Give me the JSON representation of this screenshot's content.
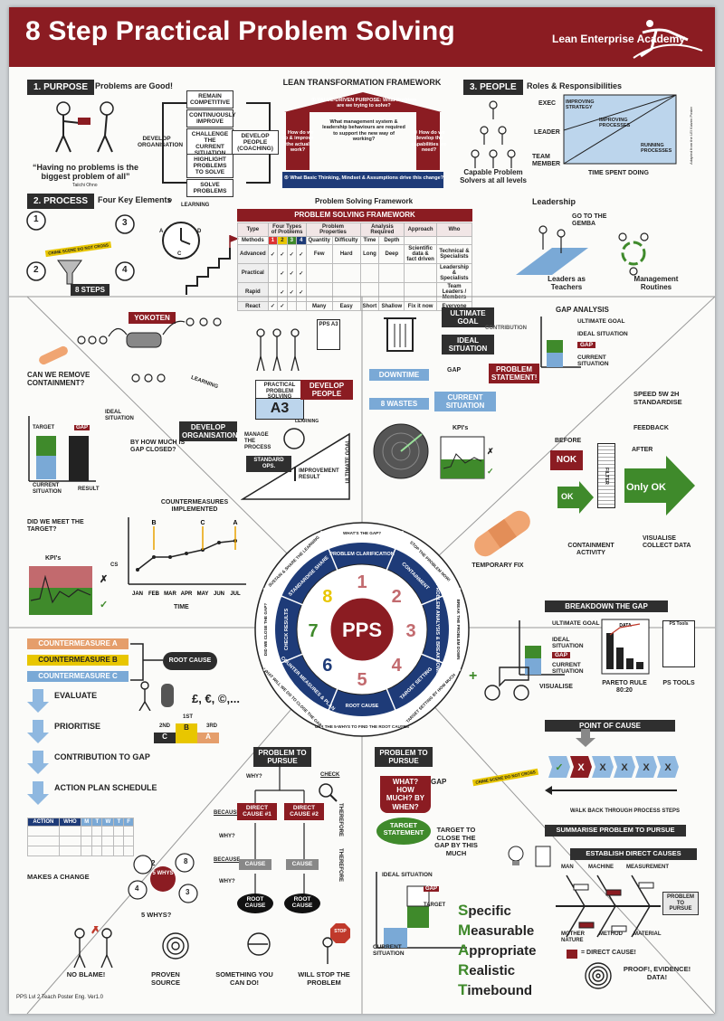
{
  "header": {
    "title": "8 Step Practical Problem Solving",
    "brand": "Lean Enterprise Academy"
  },
  "purpose": {
    "label": "1. PURPOSE",
    "subtitle": "Problems are Good!",
    "quote": "“Having no problems is the biggest problem of all”",
    "quote_author": "Taiichi Ohno",
    "cycle": {
      "remain": "REMAIN COMPETITIVE",
      "improve": "CONTINUOUSLY IMPROVE",
      "challenge": "CHALLENGE THE CURRENT SITUATION",
      "highlight": "HIGHLIGHT PROBLEMS TO SOLVE",
      "solve": "SOLVE PROBLEMS",
      "develop_org": "DEVELOP ORGANISATION",
      "develop_people": "DEVELOP PEOPLE (COACHING)"
    }
  },
  "ltf": {
    "title": "LEAN TRANSFORMATION FRAMEWORK",
    "q1": "① VALUE-DRIVEN PURPOSE: What Problem are we trying to solve?",
    "q2": "② How do we do & improve the actual work?",
    "q_mid": "What management system & leadership behaviours are required to support the new way of working?",
    "q3": "③ How do we develop the capabilities we need?",
    "q5": "⑤ What Basic Thinking, Mindset & Assumptions drive this change?"
  },
  "people": {
    "label": "3. PEOPLE",
    "subtitle": "Roles & Responsibilities",
    "caption": "Capable Problem Solvers at all levels",
    "rows": [
      "EXEC",
      "LEADER",
      "TEAM MEMBER"
    ],
    "bands": [
      "IMPROVING STRATEGY",
      "IMPROVING PROCESSES",
      "RUNNING PROCESSES"
    ],
    "xaxis": "TIME SPENT DOING"
  },
  "process": {
    "label": "2. PROCESS",
    "subtitle": "Four Key Elements",
    "steps_badge": "8 STEPS",
    "learning": "LEARNING",
    "tape": "CRIME SCENE DO NOT CROSS",
    "nums": [
      "1",
      "2",
      "3",
      "4"
    ],
    "cycle_letters": [
      "P",
      "D",
      "C",
      "A"
    ]
  },
  "psf": {
    "title": "Problem Solving Framework",
    "table_title": "PROBLEM SOLVING FRAMEWORK",
    "headers": [
      "Type",
      "Four Types of Problems",
      "Problem Properties",
      "Analysis Required",
      "Approach",
      "Who"
    ],
    "subheaders": [
      "Methods",
      "1",
      "2",
      "3",
      "4",
      "Quantity",
      "Difficulty",
      "Time",
      "Depth"
    ],
    "rows": [
      {
        "type": "Advanced",
        "cells": [
          "✓",
          "✓",
          "✓",
          "✓",
          "Few",
          "Hard",
          "Long",
          "Deep",
          "Scientific data & fact driven",
          "Technical & Specialists"
        ]
      },
      {
        "type": "Practical",
        "cells": [
          "",
          "✓",
          "✓",
          "✓",
          "",
          "",
          "",
          "",
          "",
          "Leadership & Specialists"
        ]
      },
      {
        "type": "Rapid",
        "cells": [
          "",
          "✓",
          "✓",
          "✓",
          "",
          "",
          "",
          "",
          "",
          "Team Leaders / Members"
        ]
      },
      {
        "type": "React",
        "cells": [
          "✓",
          "✓",
          "",
          "",
          "Many",
          "Easy",
          "Short",
          "Shallow",
          "Fix it now",
          "Everyone"
        ]
      }
    ]
  },
  "leadership": {
    "label": "Leadership",
    "gemba": "GO TO THE GEMBA",
    "teachers": "Leaders as Teachers",
    "routines": "Management Routines"
  },
  "q8": {
    "yokoten": "YOKOTEN",
    "pps_a3": "PPS A3",
    "containment_q": "CAN WE REMOVE CONTAINMENT?",
    "practical": "PRACTICAL PROBLEM SOLVING",
    "a3": "A3",
    "develop_people": "DEVELOP PEOPLE",
    "develop_org": "DEVELOP ORGANISATION",
    "learning": "LEARNING"
  },
  "q7": {
    "target": "TARGET",
    "gap": "GAP",
    "ideal": "IDEAL SITUATION",
    "current": "CURRENT SITUATION",
    "result": "RESULT",
    "closed_q": "BY HOW MUCH IS GAP CLOSED?",
    "manage": "MANAGE THE PROCESS",
    "std": "STANDARD OPS.",
    "improvement": "IMPROVEMENT RESULT",
    "ultimate": "ULTIMATE GOAL",
    "learning": "LEARNING"
  },
  "q6": {
    "countermeasures": "COUNTERMEASURES IMPLEMENTED",
    "target_q": "DID WE MEET THE TARGET?",
    "kpis": "KPI's",
    "time": "TIME",
    "cs": "CS",
    "months": [
      "JAN",
      "FEB",
      "MAR",
      "APR",
      "MAY",
      "JUN",
      "JUL"
    ],
    "markers": [
      "B",
      "C",
      "A"
    ]
  },
  "q1": {
    "ultimate": "ULTIMATE GOAL",
    "ideal": "IDEAL SITUATION",
    "contribution": "CONTRIBUTION",
    "gap": "GAP",
    "statement": "PROBLEM STATEMENT!",
    "current": "CURRENT SITUATION",
    "downtime": "DOWNTIME",
    "wastes": "8 WASTES",
    "kpis": "KPI's",
    "gap_analysis": "GAP ANALYSIS",
    "ga_items": [
      "ULTIMATE GOAL",
      "IDEAL SITUATION",
      "GAP",
      "CURRENT SITUATION"
    ]
  },
  "q2": {
    "speed": "SPEED 5W 2H STANDARDISE",
    "before": "BEFORE",
    "after": "AFTER",
    "feedback": "FEEDBACK",
    "nok": "NOK",
    "ok": "OK",
    "only_ok": "Only OK",
    "filter": "FILTER",
    "containment": "CONTAINMENT ACTIVITY",
    "visualise": "VISUALISE COLLECT DATA",
    "temp": "TEMPORARY FIX"
  },
  "wheel": {
    "center": "PPS",
    "nums": [
      "1",
      "2",
      "3",
      "4",
      "5",
      "6",
      "7",
      "8"
    ],
    "inner": [
      "PROBLEM CLARIFICATION",
      "CONTAINMENT",
      "PROBLEM ANALYSIS & BREAKDOWN",
      "TARGET SETTING",
      "ROOT CAUSE",
      "COUNTER MEASURES & PLAN",
      "CHECK RESULTS",
      "STANDARDISE SHARE"
    ],
    "outer": [
      "WHAT'S THE GAP?",
      "STOP THE PROBLEM NOW!",
      "BREAK THE PROBLEM DOWN",
      "TARGET SETTING BY HOW MUCH",
      "USE THE 5-WHYS TO FIND THE ROOT CAUSES",
      "WHAT WILL WE DO TO CLOSE THE GAP?",
      "DID WE CLOSE THE GAP?",
      "SUSTAIN & SHARE THE LEARNING"
    ]
  },
  "q3": {
    "breakdown": "BREAKDOWN THE GAP",
    "ultimate": "ULTIMATE GOAL",
    "ideal": "IDEAL SITUATION",
    "gap": "GAP",
    "current": "CURRENT SITUATION",
    "visualise": "VISUALISE",
    "pareto": "PARETO RULE 80:20",
    "tools": "PS TOOLS",
    "poc": "POINT OF CAUSE",
    "walk": "WALK BACK THROUGH PROCESS STEPS",
    "summarise": "SUMMARISE PROBLEM TO PURSUE",
    "establish": "ESTABLISH DIRECT CAUSES",
    "tape": "CRIME SCENE DO NOT CROSS",
    "fish": [
      "MAN",
      "MACHINE",
      "MEASUREMENT",
      "MOTHER NATURE",
      "METHOD",
      "MATERIAL"
    ],
    "fish_head": "PROBLEM TO PURSUE",
    "direct": "= DIRECT CAUSE!",
    "proof": "PROOF!, EVIDENCE! DATA!",
    "data_lbl": "DATA",
    "pps_tools": "PS Tools"
  },
  "q5": {
    "cms": [
      "COUNTERMEASURE A",
      "COUNTERMEASURE B",
      "COUNTERMEASURE C"
    ],
    "root": "ROOT CAUSE",
    "money": "£, €, ©,...",
    "evaluate": "EVALUATE",
    "prioritise": "PRIORITISE",
    "contribution": "CONTRIBUTION TO GAP",
    "action": "ACTION PLAN SCHEDULE",
    "ranks": [
      "2ND",
      "1ST",
      "3RD"
    ],
    "rank_letters": [
      "C",
      "B",
      "A"
    ],
    "plan_headers": [
      "ACTION",
      "WHO",
      "M",
      "T",
      "W",
      "T",
      "F"
    ],
    "change": "MAKES A CHANGE"
  },
  "q4": {
    "ptp": "PROBLEM TO PURSUE",
    "why": "WHY?",
    "check": "CHECK",
    "because": "BECAUSE",
    "dc1": "DIRECT CAUSE #1",
    "dc2": "DIRECT CAUSE #2",
    "cause": "CAUSE",
    "root": "ROOT CAUSE",
    "therefore": "THEREFORE",
    "five": "5 WHYS",
    "five_q": "5 WHYS?",
    "nums": [
      "2",
      "3",
      "4",
      "8"
    ],
    "blame": "NO BLAME!",
    "proven": "PROVEN SOURCE",
    "something": "SOMETHING YOU CAN DO!",
    "stop": "WILL STOP THE PROBLEM",
    "stop_sign": "STOP"
  },
  "q4b": {
    "ptp": "PROBLEM TO PURSUE",
    "what": "WHAT? HOW MUCH? BY WHEN?",
    "gap": "GAP",
    "statement": "TARGET STATEMENT",
    "close": "TARGET TO CLOSE THE GAP BY THIS MUCH",
    "ideal": "IDEAL SITUATION",
    "gap2": "GAP",
    "target": "TARGET",
    "current": "CURRENT SITUATION",
    "smart": [
      {
        "l": "S",
        "r": "pecific"
      },
      {
        "l": "M",
        "r": "easurable"
      },
      {
        "l": "A",
        "r": "ppropriate"
      },
      {
        "l": "R",
        "r": "ealistic"
      },
      {
        "l": "T",
        "r": "imebound"
      }
    ]
  },
  "footer": "PPS Lvl 2 Teach Poster Eng. Ver1.0",
  "side_note": "Adapted from the LEI Kaizen Poster"
}
